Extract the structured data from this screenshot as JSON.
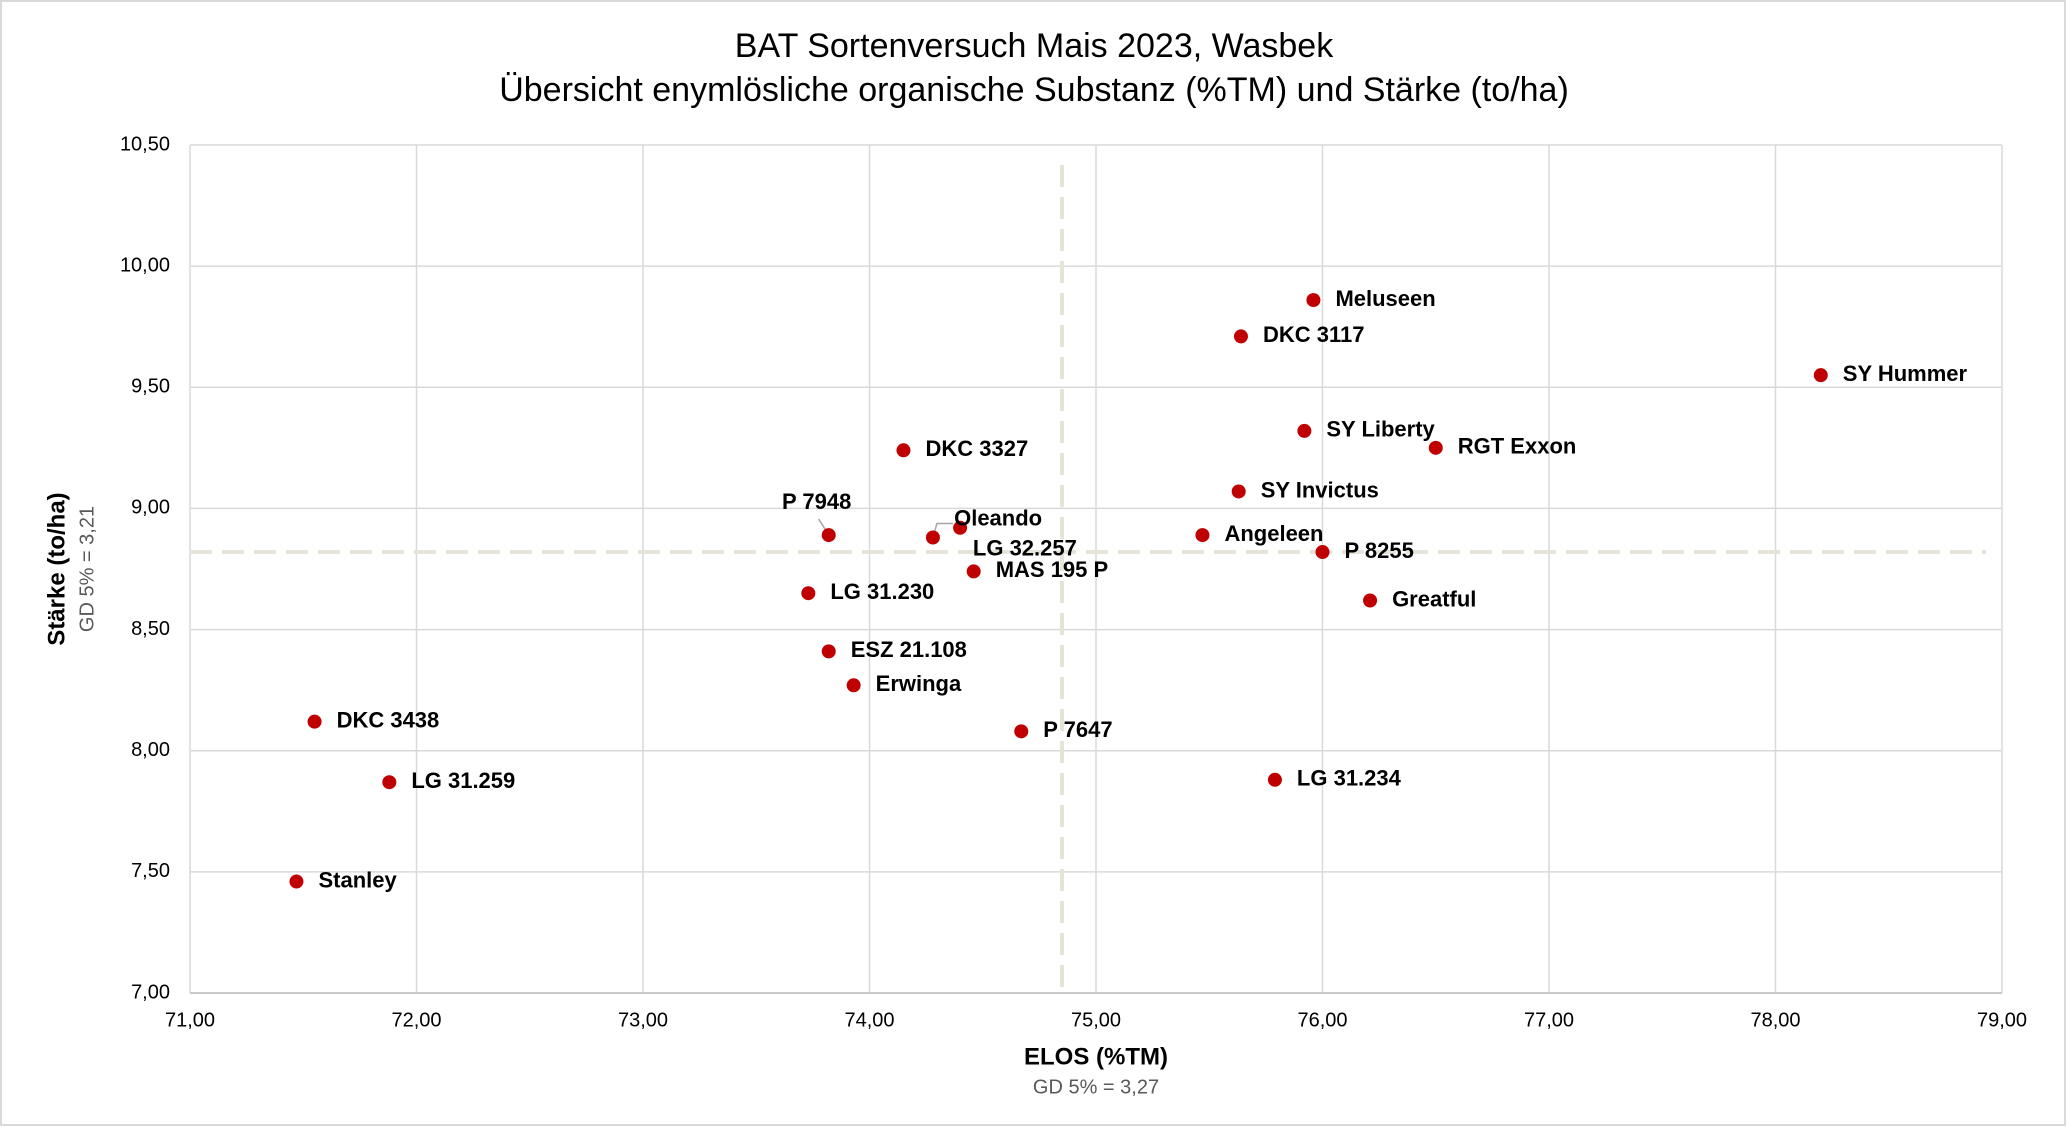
{
  "chart_data": {
    "type": "scatter",
    "title": [
      "BAT Sortenversuch Mais 2023, Wasbek",
      "Übersicht enymlösliche organische Substanz (%TM) und Stärke (to/ha)"
    ],
    "x_label": "ELOS (%TM)",
    "x_sublabel": "GD 5% = 3,27",
    "y_label": "Stärke (to/ha)",
    "y_sublabel": "GD 5% = 3,21",
    "point_labels": [
      "Meluseen",
      "DKC 3117",
      "SY Hummer",
      "SY Liberty",
      "RGT Exxon",
      "DKC 3327",
      "SY Invictus",
      "P 7948",
      "Angeleen",
      "Oleando",
      "LG 32.257",
      "P 8255",
      "MAS 195 P",
      "LG 31.230",
      "Greatful",
      "ESZ 21.108",
      "Erwinga",
      "DKC 3438",
      "P 7647",
      "LG 31.234",
      "LG 31.259",
      "Stanley"
    ],
    "x": [
      75.96,
      75.64,
      78.2,
      75.92,
      76.5,
      74.15,
      75.63,
      73.82,
      75.47,
      74.4,
      74.28,
      76.0,
      74.46,
      73.73,
      76.21,
      73.82,
      73.93,
      71.55,
      74.67,
      75.79,
      71.88,
      71.47
    ],
    "values": [
      9.86,
      9.71,
      9.55,
      9.32,
      9.25,
      9.24,
      9.07,
      8.89,
      8.89,
      8.92,
      8.88,
      8.82,
      8.74,
      8.65,
      8.62,
      8.41,
      8.27,
      8.12,
      8.08,
      7.88,
      7.87,
      7.46
    ],
    "color": "#c00000",
    "ref_x": 74.85,
    "ref_y": 8.82,
    "ref_color": "#e6e3d8",
    "xlim": [
      71,
      79
    ],
    "xticks": [
      {
        "value": 71,
        "label": "71,00"
      },
      {
        "value": 72,
        "label": "72,00"
      },
      {
        "value": 73,
        "label": "73,00"
      },
      {
        "value": 74,
        "label": "74,00"
      },
      {
        "value": 75,
        "label": "75,00"
      },
      {
        "value": 76,
        "label": "76,00"
      },
      {
        "value": 77,
        "label": "77,00"
      },
      {
        "value": 78,
        "label": "78,00"
      },
      {
        "value": 79,
        "label": "79,00"
      }
    ],
    "ylim": [
      7,
      10.5
    ],
    "yticks": [
      {
        "value": 7,
        "label": "7,00"
      },
      {
        "value": 7.5,
        "label": "7,50"
      },
      {
        "value": 8,
        "label": "8,00"
      },
      {
        "value": 8.5,
        "label": "8,50"
      },
      {
        "value": 9,
        "label": "9,00"
      },
      {
        "value": 9.5,
        "label": "9,50"
      },
      {
        "value": 10,
        "label": "10,00"
      },
      {
        "value": 10.5,
        "label": "10,50"
      }
    ],
    "grid": true
  }
}
